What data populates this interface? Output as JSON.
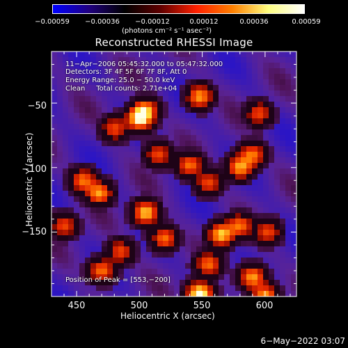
{
  "colorbar": {
    "tick_labels": [
      "−0.00059",
      "−0.00036",
      "−0.00012",
      "0.00012",
      "0.00036",
      "0.00059"
    ],
    "units_label": "(photons cm⁻² s⁻¹ asec⁻²)",
    "range": [
      -0.00059,
      0.00059
    ],
    "colormap": [
      "#0000ff",
      "#200080",
      "#000000",
      "#600000",
      "#ff2000",
      "#ff8000",
      "#ffff80",
      "#ffffff"
    ]
  },
  "annotations": {
    "line1": "11−Apr−2006 05:45:32.000 to 05:47:32.000",
    "line2": "Detectors: 3F 4F 5F 6F 7F 8F, Att 0",
    "line3": "Energy Range: 25.0 − 50.0 keV",
    "line4": "Clean     Total counts: 2.71e+04",
    "peak": "Position of Peak = [553,−200]"
  },
  "footer": {
    "date": "6−May−2022 03:07"
  },
  "chart_data": {
    "type": "heatmap",
    "title": "Reconstructed RHESSI Image",
    "xlabel": "Heliocentric X (arcsec)",
    "ylabel": "Heliocentric Y (arcsec)",
    "xlim": [
      430,
      625
    ],
    "ylim": [
      -200,
      -10
    ],
    "xticks": [
      "450",
      "500",
      "550",
      "600"
    ],
    "yticks": [
      "−50",
      "−100",
      "−150"
    ],
    "peak_position": [
      553,
      -200
    ],
    "blobs": [
      {
        "x": 500,
        "y": -62,
        "v": 0.9
      },
      {
        "x": 505,
        "y": -55,
        "v": 0.6
      },
      {
        "x": 548,
        "y": -45,
        "v": 0.7
      },
      {
        "x": 590,
        "y": -90,
        "v": 0.6
      },
      {
        "x": 580,
        "y": -100,
        "v": 0.7
      },
      {
        "x": 540,
        "y": -98,
        "v": 0.6
      },
      {
        "x": 555,
        "y": -112,
        "v": 0.5
      },
      {
        "x": 480,
        "y": -70,
        "v": 0.5
      },
      {
        "x": 468,
        "y": -120,
        "v": 0.7
      },
      {
        "x": 455,
        "y": -110,
        "v": 0.6
      },
      {
        "x": 505,
        "y": -135,
        "v": 0.8
      },
      {
        "x": 520,
        "y": -155,
        "v": 0.6
      },
      {
        "x": 565,
        "y": -152,
        "v": 0.8
      },
      {
        "x": 580,
        "y": -145,
        "v": 0.6
      },
      {
        "x": 602,
        "y": -150,
        "v": 0.5
      },
      {
        "x": 555,
        "y": -175,
        "v": 0.6
      },
      {
        "x": 590,
        "y": -185,
        "v": 0.7
      },
      {
        "x": 548,
        "y": -198,
        "v": 1.0
      },
      {
        "x": 600,
        "y": -200,
        "v": 0.7
      },
      {
        "x": 485,
        "y": -165,
        "v": 0.5
      },
      {
        "x": 470,
        "y": -180,
        "v": 0.6
      },
      {
        "x": 515,
        "y": -90,
        "v": 0.5
      },
      {
        "x": 595,
        "y": -58,
        "v": 0.5
      },
      {
        "x": 440,
        "y": -145,
        "v": 0.5
      }
    ]
  }
}
